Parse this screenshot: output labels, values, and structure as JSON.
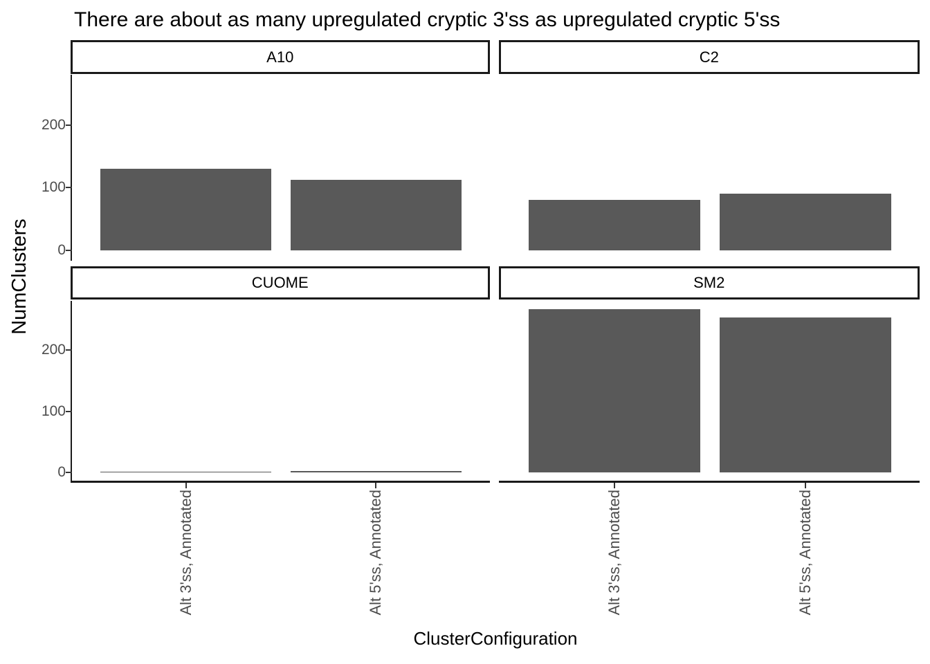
{
  "chart_data": {
    "type": "bar",
    "title": "There are about as many upregulated cryptic 3'ss as upregulated cryptic 5'ss",
    "xlabel": "ClusterConfiguration",
    "ylabel": "NumClusters",
    "categories": [
      "Alt 3'ss, Annotated",
      "Alt 5'ss, Annotated"
    ],
    "facets": [
      {
        "name": "A10",
        "values": [
          130,
          113
        ]
      },
      {
        "name": "C2",
        "values": [
          80,
          90
        ]
      },
      {
        "name": "CUOME",
        "values": [
          1,
          3
        ]
      },
      {
        "name": "SM2",
        "values": [
          267,
          253
        ]
      }
    ],
    "y_ticks": [
      0,
      100,
      200
    ],
    "ylim_data": [
      0,
      267
    ],
    "facet_layout": "2x2",
    "legend_position": "none",
    "grid": false,
    "bar_color": "#595959",
    "axis_text_color": "#4D4D4D",
    "strip_border_color": "#1a1a1a",
    "background_color": "#FFFFFF"
  }
}
